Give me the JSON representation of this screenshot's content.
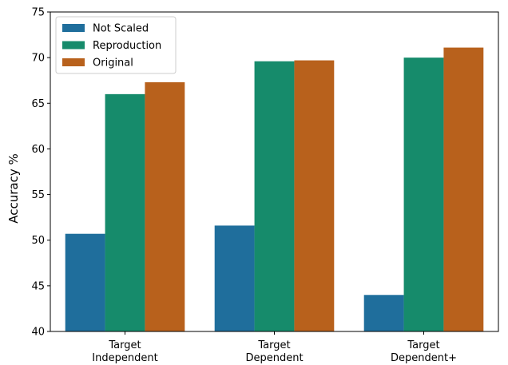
{
  "chart_data": {
    "type": "bar",
    "title": "",
    "xlabel": "",
    "ylabel": "Accuracy %",
    "ylim": [
      40,
      75
    ],
    "yticks": [
      40,
      45,
      50,
      55,
      60,
      65,
      70,
      75
    ],
    "categories": [
      [
        "Target",
        "Independent"
      ],
      [
        "Target",
        "Dependent"
      ],
      [
        "Target",
        "Dependent+"
      ]
    ],
    "series": [
      {
        "name": "Not Scaled",
        "color": "#1f6e9c",
        "values": [
          50.7,
          51.6,
          44.0
        ]
      },
      {
        "name": "Reproduction",
        "color": "#168b6b",
        "values": [
          66.0,
          69.6,
          70.0
        ]
      },
      {
        "name": "Original",
        "color": "#b8611c",
        "values": [
          67.3,
          69.7,
          71.1
        ]
      }
    ],
    "grid": false,
    "legend_position": "top-left"
  }
}
